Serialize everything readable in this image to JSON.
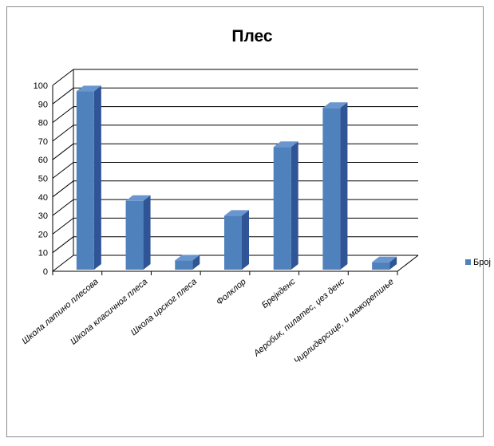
{
  "chart_data": {
    "type": "bar",
    "title": "Плес",
    "categories": [
      "Школа латино плесова",
      "Школа класичног плеса",
      "Школа ирског плеса",
      "Фолклор",
      "Брејкденс",
      "Аеробик, пилатес, џез денс",
      "Чирлидерсице, и мажоретиње"
    ],
    "series": [
      {
        "name": "Број",
        "values": [
          96,
          37,
          5,
          29,
          66,
          87,
          4
        ]
      }
    ],
    "yticks": [
      "0",
      "10",
      "20",
      "30",
      "40",
      "50",
      "60",
      "70",
      "80",
      "90",
      "100"
    ],
    "ylim": [
      0,
      100
    ],
    "grid": true,
    "legend_position": "right",
    "colors": {
      "bar": "#4f81bd",
      "bar_side": "#2f5597",
      "bar_top": "#6a96cf",
      "grid": "#000000"
    }
  }
}
